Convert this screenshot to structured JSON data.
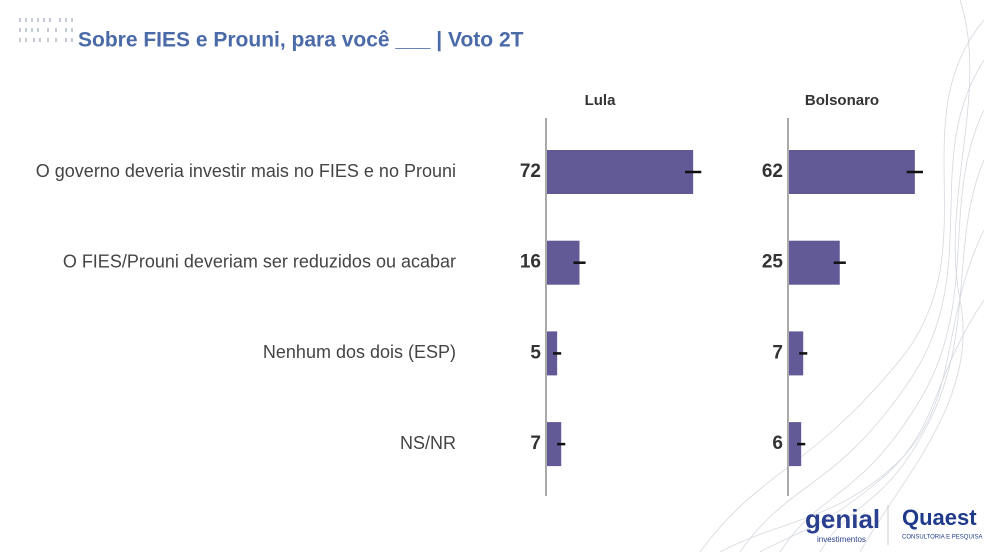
{
  "chart_data": {
    "type": "bar",
    "title": "Sobre FIES e Prouni, para você ___ | Voto 2T",
    "categories": [
      "O governo deveria investir mais no FIES e no Prouni",
      "O FIES/Prouni deveriam ser reduzidos ou acabar",
      "Nenhum dos dois (ESP)",
      "NS/NR"
    ],
    "series": [
      {
        "name": "Lula",
        "color": "#625a96",
        "values": [
          72,
          16,
          5,
          7
        ],
        "errors": [
          4,
          3,
          2,
          2
        ]
      },
      {
        "name": "Bolsonaro",
        "color": "#625a96",
        "values": [
          62,
          25,
          7,
          6
        ],
        "errors": [
          4,
          3,
          2,
          2
        ]
      }
    ],
    "xlim": [
      0,
      100
    ]
  },
  "logos": {
    "genial": "genial",
    "genial_sub": "investimentos",
    "quaest": "Quaest",
    "quaest_sub": "CONSULTORIA E PESQUISA"
  }
}
